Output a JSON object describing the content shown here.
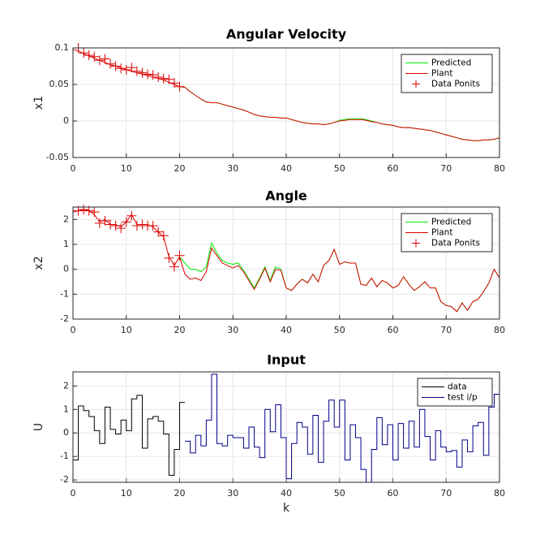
{
  "chart_data": [
    {
      "type": "line",
      "title": "Angular Velocity",
      "ylabel": "x1",
      "x": [
        0,
        1,
        2,
        3,
        4,
        5,
        6,
        7,
        8,
        9,
        10,
        11,
        12,
        13,
        14,
        15,
        16,
        17,
        18,
        19,
        20,
        21,
        22,
        23,
        24,
        25,
        26,
        27,
        28,
        29,
        30,
        31,
        32,
        33,
        34,
        35,
        36,
        37,
        38,
        39,
        40,
        41,
        42,
        43,
        44,
        45,
        46,
        47,
        48,
        49,
        50,
        51,
        52,
        53,
        54,
        55,
        56,
        57,
        58,
        59,
        60,
        61,
        62,
        63,
        64,
        65,
        66,
        67,
        68,
        69,
        70,
        71,
        72,
        73,
        74,
        75,
        76,
        77,
        78,
        79,
        80
      ],
      "series": [
        {
          "name": "Predicted",
          "color": "#00ee00",
          "values": [
            null,
            null,
            null,
            null,
            null,
            null,
            null,
            null,
            null,
            null,
            null,
            null,
            null,
            null,
            null,
            null,
            null,
            null,
            null,
            null,
            0.047,
            0.046,
            0.04,
            0.035,
            0.03,
            0.026,
            0.025,
            0.025,
            0.023,
            0.021,
            0.019,
            0.017,
            0.015,
            0.012,
            0.009,
            0.007,
            0.006,
            0.005,
            0.005,
            0.004,
            0.004,
            0.002,
            0.0,
            -0.002,
            -0.003,
            -0.004,
            -0.004,
            -0.005,
            -0.004,
            -0.002,
            0.001,
            0.002,
            0.003,
            0.003,
            0.003,
            0.002,
            0.0,
            -0.002,
            -0.004,
            -0.005,
            -0.006,
            -0.008,
            -0.009,
            -0.009,
            -0.01,
            -0.011,
            -0.012,
            -0.013,
            -0.015,
            -0.017,
            -0.019,
            -0.021,
            -0.023,
            -0.025,
            -0.026,
            -0.027,
            -0.027,
            -0.026,
            -0.026,
            -0.025,
            -0.023
          ]
        },
        {
          "name": "Plant",
          "color": "#dd0000",
          "values": [
            0.098,
            0.096,
            0.092,
            0.089,
            0.086,
            0.083,
            0.08,
            0.077,
            0.075,
            0.073,
            0.07,
            0.068,
            0.066,
            0.064,
            0.062,
            0.06,
            0.058,
            0.056,
            0.053,
            0.05,
            0.047,
            0.046,
            0.04,
            0.035,
            0.03,
            0.026,
            0.025,
            0.025,
            0.023,
            0.021,
            0.019,
            0.017,
            0.015,
            0.012,
            0.009,
            0.007,
            0.006,
            0.005,
            0.005,
            0.004,
            0.004,
            0.002,
            0.0,
            -0.002,
            -0.003,
            -0.004,
            -0.004,
            -0.005,
            -0.004,
            -0.002,
            0.0,
            0.001,
            0.002,
            0.002,
            0.002,
            0.001,
            -0.001,
            -0.002,
            -0.004,
            -0.005,
            -0.006,
            -0.008,
            -0.009,
            -0.009,
            -0.01,
            -0.011,
            -0.012,
            -0.013,
            -0.015,
            -0.017,
            -0.019,
            -0.021,
            -0.023,
            -0.025,
            -0.026,
            -0.027,
            -0.027,
            -0.026,
            -0.026,
            -0.025,
            -0.023
          ]
        },
        {
          "name": "Data Ponits",
          "color": "#dd0000",
          "marker": "+",
          "values": [
            null,
            0.1,
            0.093,
            0.09,
            0.088,
            0.083,
            0.085,
            0.078,
            0.075,
            0.072,
            0.07,
            0.073,
            0.068,
            0.066,
            0.064,
            0.063,
            0.06,
            0.058,
            0.057,
            0.052,
            0.047,
            null,
            null,
            null,
            null,
            null,
            null,
            null,
            null,
            null,
            null,
            null,
            null,
            null,
            null,
            null,
            null,
            null,
            null,
            null,
            null,
            null,
            null,
            null,
            null,
            null,
            null,
            null,
            null,
            null,
            null,
            null,
            null,
            null,
            null,
            null,
            null,
            null,
            null,
            null,
            null,
            null,
            null,
            null,
            null,
            null,
            null,
            null,
            null,
            null,
            null,
            null,
            null,
            null,
            null,
            null,
            null,
            null,
            null,
            null,
            null
          ]
        }
      ],
      "xlim": [
        0,
        80
      ],
      "xticks": [
        0,
        10,
        20,
        30,
        40,
        50,
        60,
        70,
        80
      ],
      "ylim": [
        -0.05,
        0.1
      ],
      "yticks": [
        -0.05,
        0,
        0.05,
        0.1
      ],
      "grid": true,
      "legend": "northeast"
    },
    {
      "type": "line",
      "title": "Angle",
      "ylabel": "x2",
      "x": [
        0,
        1,
        2,
        3,
        4,
        5,
        6,
        7,
        8,
        9,
        10,
        11,
        12,
        13,
        14,
        15,
        16,
        17,
        18,
        19,
        20,
        21,
        22,
        23,
        24,
        25,
        26,
        27,
        28,
        29,
        30,
        31,
        32,
        33,
        34,
        35,
        36,
        37,
        38,
        39,
        40,
        41,
        42,
        43,
        44,
        45,
        46,
        47,
        48,
        49,
        50,
        51,
        52,
        53,
        54,
        55,
        56,
        57,
        58,
        59,
        60,
        61,
        62,
        63,
        64,
        65,
        66,
        67,
        68,
        69,
        70,
        71,
        72,
        73,
        74,
        75,
        76,
        77,
        78,
        79,
        80
      ],
      "series": [
        {
          "name": "Predicted",
          "color": "#00ee00",
          "values": [
            null,
            null,
            null,
            null,
            null,
            null,
            null,
            null,
            null,
            null,
            null,
            null,
            null,
            null,
            null,
            null,
            null,
            null,
            null,
            null,
            0.5,
            0.25,
            0.0,
            0.0,
            -0.1,
            0.1,
            1.05,
            0.65,
            0.35,
            0.25,
            0.2,
            0.25,
            -0.05,
            -0.4,
            -0.75,
            -0.35,
            0.1,
            -0.45,
            0.1,
            0.0,
            -0.75,
            -0.85,
            -0.6,
            -0.4,
            -0.55,
            -0.2,
            -0.5,
            0.15,
            0.35,
            0.8,
            0.2,
            0.3,
            0.25,
            0.25,
            -0.6,
            -0.65,
            -0.35,
            -0.7,
            -0.45,
            -0.55,
            -0.75,
            -0.65,
            -0.3,
            -0.6,
            -0.85,
            -0.7,
            -0.5,
            -0.75,
            -0.75,
            -1.3,
            -1.45,
            -1.5,
            -1.7,
            -1.35,
            -1.65,
            -1.3,
            -1.2,
            -0.9,
            -0.55,
            0.0,
            -0.35
          ]
        },
        {
          "name": "Plant",
          "color": "#dd0000",
          "values": [
            2.3,
            2.35,
            2.4,
            2.35,
            2.2,
            1.9,
            2.0,
            1.8,
            1.8,
            1.7,
            1.9,
            2.2,
            1.8,
            1.8,
            1.8,
            1.7,
            1.5,
            1.3,
            0.5,
            0.15,
            0.5,
            -0.2,
            -0.4,
            -0.35,
            -0.45,
            -0.1,
            0.85,
            0.55,
            0.25,
            0.15,
            0.05,
            0.15,
            -0.1,
            -0.45,
            -0.8,
            -0.4,
            0.05,
            -0.5,
            0.0,
            -0.05,
            -0.75,
            -0.85,
            -0.6,
            -0.4,
            -0.55,
            -0.2,
            -0.5,
            0.15,
            0.35,
            0.8,
            0.2,
            0.3,
            0.25,
            0.25,
            -0.6,
            -0.65,
            -0.35,
            -0.7,
            -0.45,
            -0.55,
            -0.75,
            -0.65,
            -0.3,
            -0.6,
            -0.85,
            -0.7,
            -0.5,
            -0.75,
            -0.75,
            -1.3,
            -1.45,
            -1.5,
            -1.7,
            -1.35,
            -1.65,
            -1.3,
            -1.2,
            -0.9,
            -0.55,
            0.0,
            -0.35
          ]
        },
        {
          "name": "Data Ponits",
          "color": "#dd0000",
          "marker": "+",
          "values": [
            null,
            2.35,
            2.4,
            2.35,
            2.3,
            1.85,
            1.95,
            1.8,
            1.75,
            1.65,
            1.9,
            2.15,
            1.75,
            1.8,
            1.75,
            1.75,
            1.5,
            1.35,
            0.45,
            0.1,
            0.55,
            null,
            null,
            null,
            null,
            null,
            null,
            null,
            null,
            null,
            null,
            null,
            null,
            null,
            null,
            null,
            null,
            null,
            null,
            null,
            null,
            null,
            null,
            null,
            null,
            null,
            null,
            null,
            null,
            null,
            null,
            null,
            null,
            null,
            null,
            null,
            null,
            null,
            null,
            null,
            null,
            null,
            null,
            null,
            null,
            null,
            null,
            null,
            null,
            null,
            null,
            null,
            null,
            null,
            null,
            null,
            null,
            null,
            null,
            null,
            null
          ]
        }
      ],
      "xlim": [
        0,
        80
      ],
      "xticks": [
        0,
        10,
        20,
        30,
        40,
        50,
        60,
        70,
        80
      ],
      "ylim": [
        -2,
        2.5
      ],
      "yticks": [
        -2,
        -1,
        0,
        1,
        2
      ],
      "grid": true,
      "legend": "northeast"
    },
    {
      "type": "stairs",
      "title": "Input",
      "ylabel": "U",
      "xlabel": "k",
      "x": [
        0,
        1,
        2,
        3,
        4,
        5,
        6,
        7,
        8,
        9,
        10,
        11,
        12,
        13,
        14,
        15,
        16,
        17,
        18,
        19,
        20,
        21,
        22,
        23,
        24,
        25,
        26,
        27,
        28,
        29,
        30,
        31,
        32,
        33,
        34,
        35,
        36,
        37,
        38,
        39,
        40,
        41,
        42,
        43,
        44,
        45,
        46,
        47,
        48,
        49,
        50,
        51,
        52,
        53,
        54,
        55,
        56,
        57,
        58,
        59,
        60,
        61,
        62,
        63,
        64,
        65,
        66,
        67,
        68,
        69,
        70,
        71,
        72,
        73,
        74,
        75,
        76,
        77,
        78,
        79,
        80
      ],
      "series": [
        {
          "name": "data",
          "color": "#000000",
          "values": [
            -1.15,
            1.15,
            0.95,
            0.7,
            0.1,
            -0.45,
            1.1,
            0.15,
            -0.05,
            0.55,
            0.1,
            1.45,
            1.6,
            -0.65,
            0.6,
            0.7,
            0.5,
            -0.05,
            -1.8,
            -0.7,
            1.3,
            null,
            null,
            null,
            null,
            null,
            null,
            null,
            null,
            null,
            null,
            null,
            null,
            null,
            null,
            null,
            null,
            null,
            null,
            null,
            null,
            null,
            null,
            null,
            null,
            null,
            null,
            null,
            null,
            null,
            null,
            null,
            null,
            null,
            null,
            null,
            null,
            null,
            null,
            null,
            null,
            null,
            null,
            null,
            null,
            null,
            null,
            null,
            null,
            null,
            null,
            null,
            null,
            null,
            null,
            null,
            null,
            null,
            null,
            null,
            null
          ]
        },
        {
          "name": "test i/p",
          "color": "#00008b",
          "values": [
            null,
            null,
            null,
            null,
            null,
            null,
            null,
            null,
            null,
            null,
            null,
            null,
            null,
            null,
            null,
            null,
            null,
            null,
            null,
            null,
            null,
            -0.35,
            -0.85,
            -0.1,
            -0.55,
            0.55,
            2.5,
            -0.45,
            -0.55,
            -0.1,
            -0.2,
            -0.2,
            -0.65,
            0.25,
            -0.6,
            -1.05,
            1.0,
            0.05,
            1.2,
            -0.2,
            -1.95,
            -0.45,
            0.45,
            0.25,
            -0.9,
            0.75,
            -1.25,
            0.5,
            1.4,
            0.25,
            1.4,
            -1.15,
            0.35,
            -0.2,
            -1.55,
            -2.1,
            -0.7,
            0.65,
            -0.5,
            0.35,
            -1.15,
            0.4,
            -0.65,
            0.5,
            -0.6,
            1.0,
            -0.15,
            -1.15,
            0.1,
            -0.6,
            -0.8,
            -0.75,
            -1.45,
            -0.3,
            -0.8,
            0.3,
            0.45,
            -0.95,
            1.1,
            1.65,
            -0.85
          ]
        }
      ],
      "xlim": [
        0,
        80
      ],
      "xticks": [
        0,
        10,
        20,
        30,
        40,
        50,
        60,
        70,
        80
      ],
      "ylim": [
        -2.1,
        2.6
      ],
      "yticks": [
        -2,
        -1,
        0,
        1,
        2
      ],
      "grid": true,
      "legend": "northeast"
    }
  ]
}
